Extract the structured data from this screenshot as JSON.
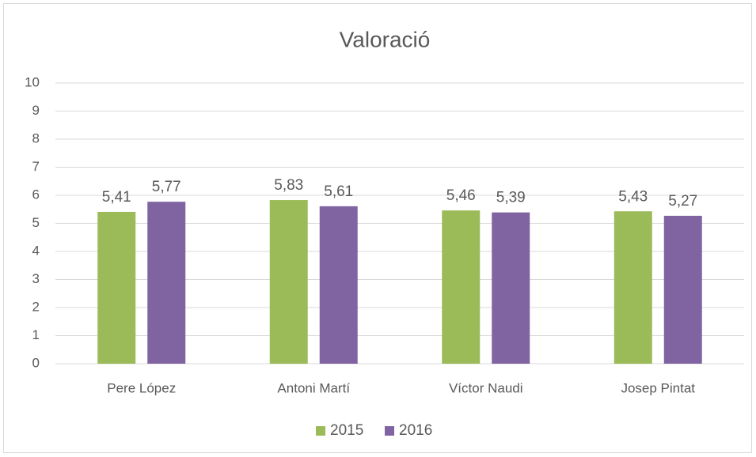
{
  "chart_data": {
    "type": "bar",
    "title": "Valoració",
    "categories": [
      "Pere López",
      "Antoni Martí",
      "Víctor Naudi",
      "Josep Pintat"
    ],
    "series": [
      {
        "name": "2015",
        "color": "#9bbb59",
        "values": [
          5.41,
          5.83,
          5.46,
          5.43
        ],
        "value_labels": [
          "5,41",
          "5,83",
          "5,46",
          "5,43"
        ]
      },
      {
        "name": "2016",
        "color": "#8064a2",
        "values": [
          5.77,
          5.61,
          5.39,
          5.27
        ],
        "value_labels": [
          "5,77",
          "5,61",
          "5,39",
          "5,27"
        ]
      }
    ],
    "ylim": [
      0,
      10
    ],
    "yticks": [
      0,
      1,
      2,
      3,
      4,
      5,
      6,
      7,
      8,
      9,
      10
    ],
    "grid": true,
    "legend": "bottom"
  }
}
